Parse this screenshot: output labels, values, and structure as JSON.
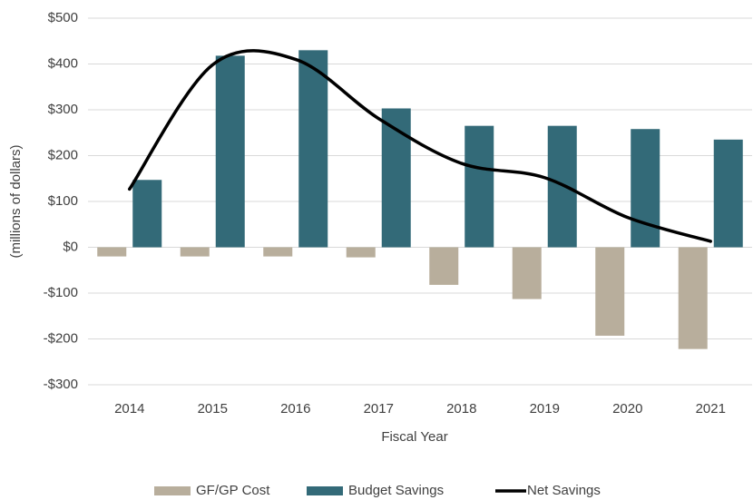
{
  "chart_data": {
    "type": "bar",
    "xlabel": "Fiscal Year",
    "ylabel": "(millions of dollars)",
    "categories": [
      "2014",
      "2015",
      "2016",
      "2017",
      "2018",
      "2019",
      "2020",
      "2021"
    ],
    "series": [
      {
        "name": "GF/GP Cost",
        "color": "#b8ae9c",
        "type": "bar",
        "values": [
          -20,
          -20,
          -20,
          -22,
          -82,
          -113,
          -193,
          -222
        ]
      },
      {
        "name": "Budget Savings",
        "color": "#336a78",
        "type": "bar",
        "values": [
          147,
          418,
          430,
          303,
          265,
          265,
          258,
          235
        ]
      },
      {
        "name": "Net Savings",
        "color": "#000000",
        "type": "line",
        "values": [
          127,
          398,
          410,
          281,
          183,
          152,
          65,
          13
        ]
      }
    ],
    "ylim": [
      -300,
      500
    ],
    "yticks": [
      {
        "value": -300,
        "label": "-$300"
      },
      {
        "value": -200,
        "label": "-$200"
      },
      {
        "value": -100,
        "label": "-$100"
      },
      {
        "value": 0,
        "label": "$0"
      },
      {
        "value": 100,
        "label": "$100"
      },
      {
        "value": 200,
        "label": "$200"
      },
      {
        "value": 300,
        "label": "$300"
      },
      {
        "value": 400,
        "label": "$400"
      },
      {
        "value": 500,
        "label": "$500"
      }
    ],
    "grid": true,
    "legend": "bottom"
  }
}
